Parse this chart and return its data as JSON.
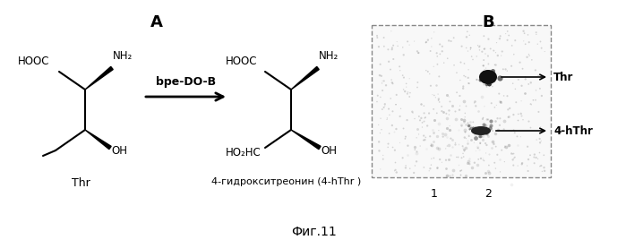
{
  "fig_width": 6.99,
  "fig_height": 2.68,
  "dpi": 100,
  "bg_color": "#ffffff",
  "panel_A_label": "A",
  "panel_B_label": "B",
  "arrow_label": "bpe-DO-B",
  "thr_label": "Thr",
  "product_label": "4-гидрокситреонин (4-hThr )",
  "thr_arrow_label": "Thr",
  "hthr_arrow_label": "4-hThr",
  "lane1_label": "1",
  "lane2_label": "2",
  "caption": "Фиг.11"
}
